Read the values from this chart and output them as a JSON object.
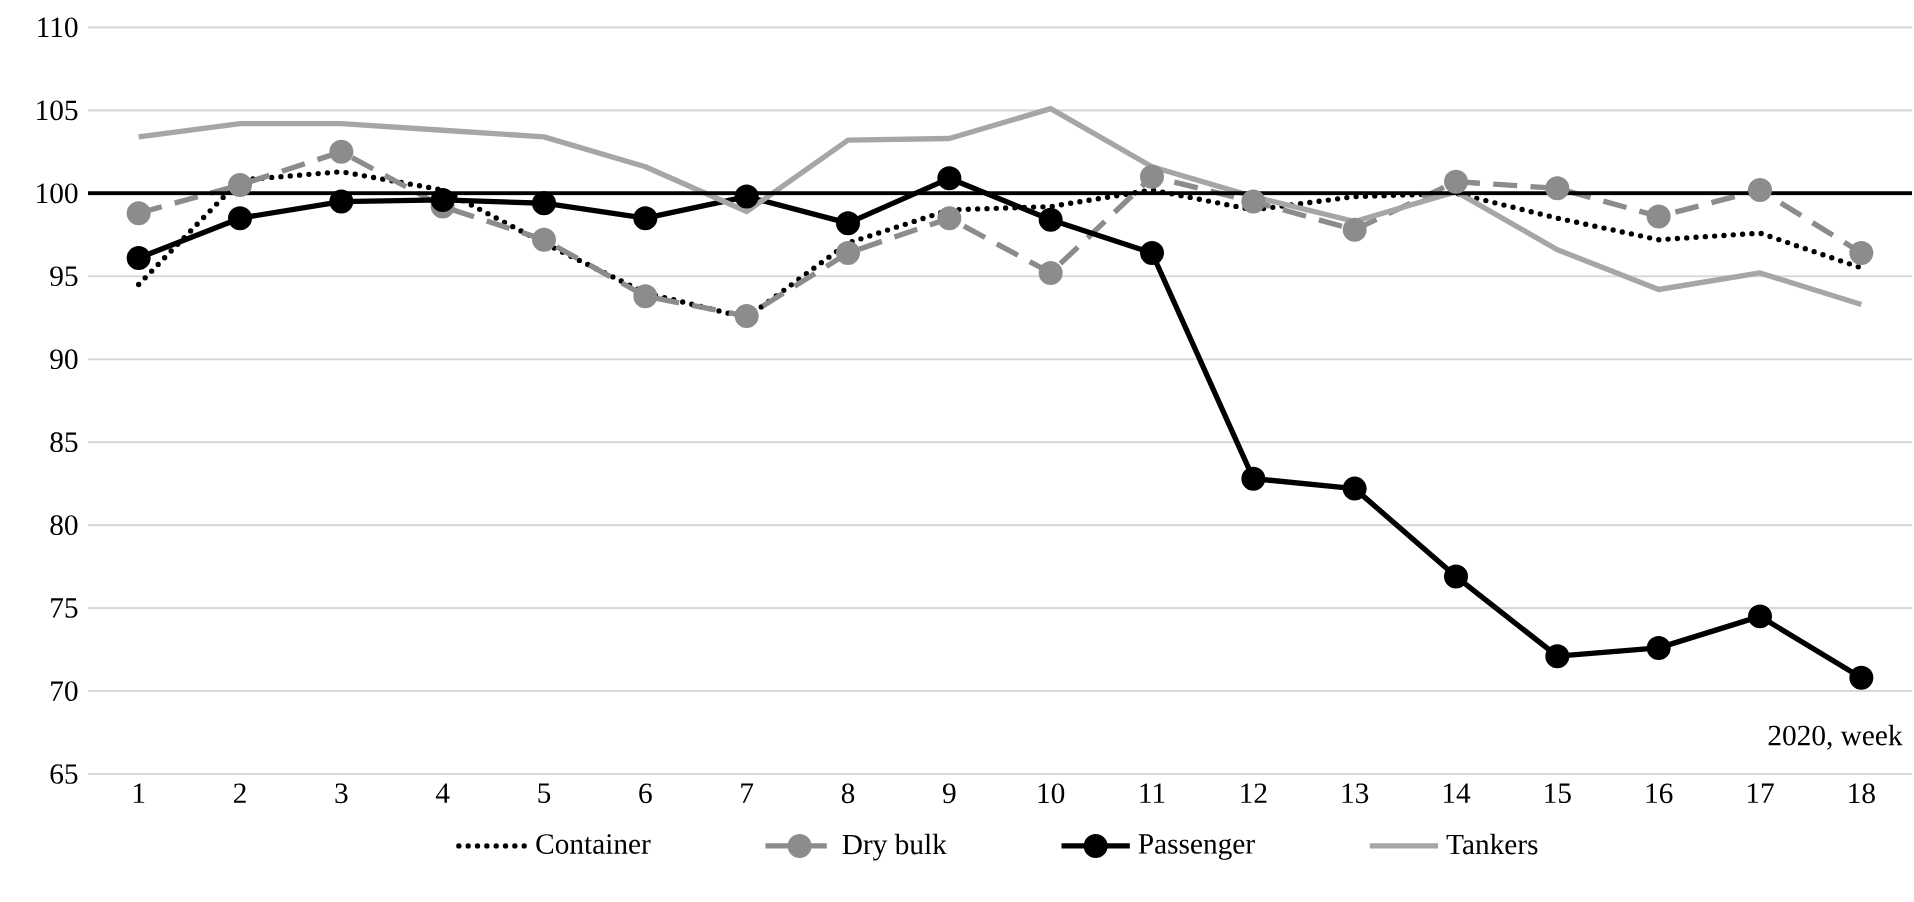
{
  "chart_data": {
    "type": "line",
    "categories": [
      "1",
      "2",
      "3",
      "4",
      "5",
      "6",
      "7",
      "8",
      "9",
      "10",
      "11",
      "12",
      "13",
      "14",
      "15",
      "16",
      "17",
      "18"
    ],
    "series": [
      {
        "name": "Container",
        "color": "#000000",
        "line_style": "dotted",
        "marker": "none",
        "values": [
          94.5,
          100.8,
          101.3,
          100.2,
          97,
          94,
          92.5,
          97,
          99,
          99.2,
          100.2,
          99,
          99.8,
          100,
          98.5,
          97.2,
          97.6,
          95.5
        ]
      },
      {
        "name": "Dry bulk",
        "color": "#8c8c8c",
        "line_style": "dashed",
        "marker": "circle",
        "values": [
          98.8,
          100.5,
          102.5,
          99.2,
          97.2,
          93.8,
          92.6,
          96.4,
          98.5,
          95.2,
          101,
          99.5,
          97.8,
          100.7,
          100.3,
          98.6,
          100.2,
          96.4
        ]
      },
      {
        "name": "Passenger",
        "color": "#000000",
        "line_style": "solid",
        "marker": "circle",
        "values": [
          96.1,
          98.5,
          99.5,
          99.6,
          99.4,
          98.5,
          99.8,
          98.2,
          100.9,
          98.4,
          96.4,
          82.8,
          82.2,
          76.9,
          72.1,
          72.6,
          74.5,
          70.8
        ]
      },
      {
        "name": "Tankers",
        "color": "#a6a6a6",
        "line_style": "solid",
        "marker": "none",
        "values": [
          103.4,
          104.2,
          104.2,
          103.8,
          103.4,
          101.6,
          98.9,
          103.2,
          103.3,
          105.1,
          101.6,
          99.8,
          98.3,
          100.1,
          96.6,
          94.2,
          95.2,
          93.3
        ]
      }
    ],
    "ylim": [
      65,
      110
    ],
    "yticks": [
      65,
      70,
      75,
      80,
      85,
      90,
      95,
      100,
      105,
      110
    ],
    "grid": "y",
    "legend": "bottom",
    "ref_lines": [
      {
        "axis": "y",
        "value": 100,
        "color": "#000000"
      }
    ],
    "annotations": [
      "2020, week"
    ]
  }
}
